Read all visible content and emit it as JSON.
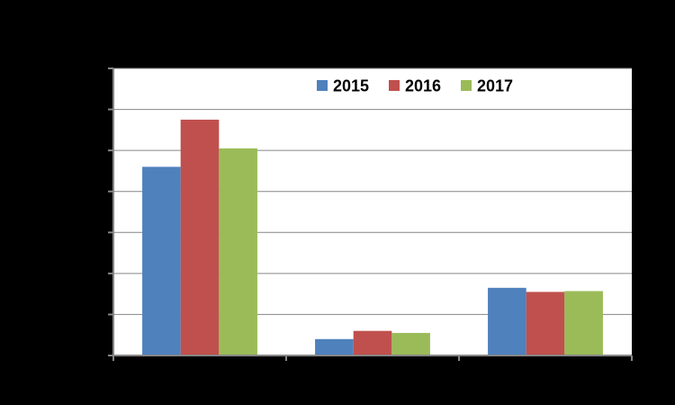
{
  "chart_data": {
    "type": "bar",
    "categories": [
      "",
      "",
      ""
    ],
    "series": [
      {
        "name": "2015",
        "color": "#4F81BD",
        "values": [
          4.6,
          0.4,
          1.65
        ]
      },
      {
        "name": "2016",
        "color": "#C0504D",
        "values": [
          5.75,
          0.6,
          1.55
        ]
      },
      {
        "name": "2017",
        "color": "#9BBB59",
        "values": [
          5.05,
          0.55,
          1.57
        ]
      }
    ],
    "ylim": [
      0,
      7
    ],
    "yticks": [
      0,
      1,
      2,
      3,
      4,
      5,
      6,
      7
    ],
    "grid": true,
    "legend_position": "top",
    "title": "",
    "xlabel": "",
    "ylabel": "",
    "colors": {
      "page_background": "#000000",
      "plot_background": "#FFFFFF",
      "gridline": "#868686",
      "axis": "#868686"
    }
  }
}
